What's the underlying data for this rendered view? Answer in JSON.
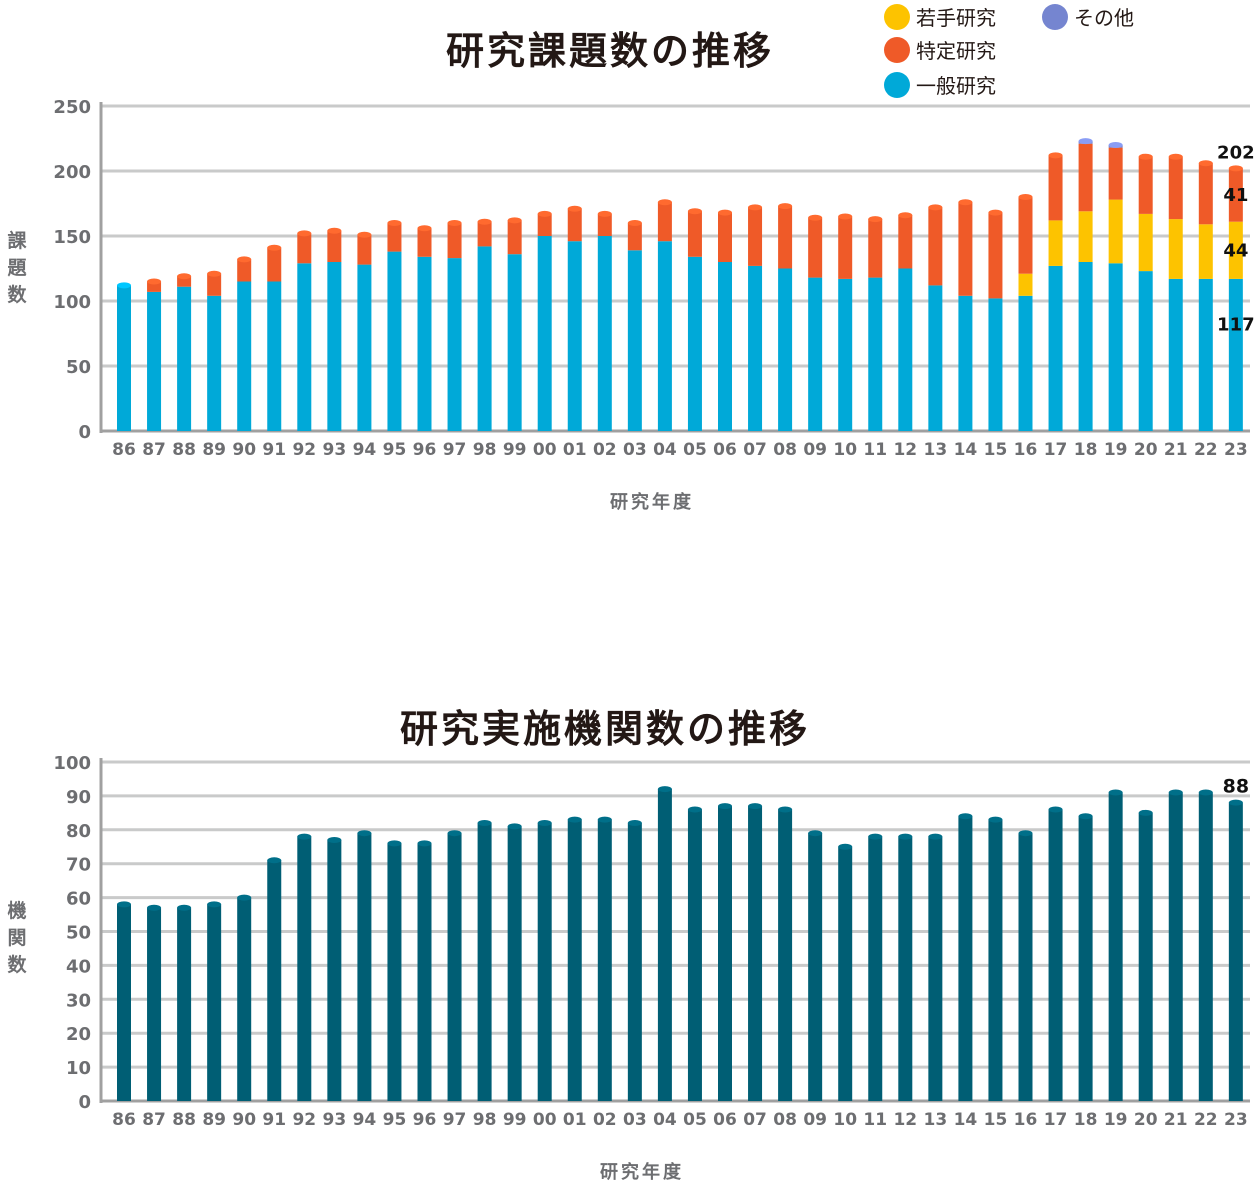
{
  "charts": {
    "projects": {
      "title": "研究課題数の推移",
      "ylabel": "課題数",
      "xlabel": "研究年度",
      "legend": [
        {
          "key": "young",
          "label": "若手研究",
          "color": "#fdc300"
        },
        {
          "key": "other",
          "label": "その他",
          "color": "#7585d0"
        },
        {
          "key": "specific",
          "label": "特定研究",
          "color": "#ef5a28"
        },
        {
          "key": "general",
          "label": "一般研究",
          "color": "#00a9d8"
        }
      ]
    },
    "institutions": {
      "title": "研究実施機関数の推移",
      "ylabel": "機関数",
      "xlabel": "研究年度"
    }
  },
  "chart_data": [
    {
      "type": "bar",
      "stacked": true,
      "title": "研究課題数の推移",
      "xlabel": "研究年度",
      "ylabel": "課題数",
      "ylim": [
        0,
        250
      ],
      "yticks": [
        0,
        50,
        100,
        150,
        200,
        250
      ],
      "grid": true,
      "legend_position": "top-right",
      "categories": [
        "86",
        "87",
        "88",
        "89",
        "90",
        "91",
        "92",
        "93",
        "94",
        "95",
        "96",
        "97",
        "98",
        "99",
        "00",
        "01",
        "02",
        "03",
        "04",
        "05",
        "06",
        "07",
        "08",
        "09",
        "10",
        "11",
        "12",
        "13",
        "14",
        "15",
        "16",
        "17",
        "18",
        "19",
        "20",
        "21",
        "22",
        "23"
      ],
      "series": [
        {
          "name": "一般研究",
          "color": "#00a9d8",
          "values": [
            112,
            107,
            111,
            104,
            115,
            115,
            129,
            130,
            128,
            138,
            134,
            133,
            142,
            136,
            150,
            146,
            150,
            139,
            146,
            134,
            130,
            127,
            125,
            118,
            117,
            118,
            125,
            112,
            104,
            102,
            104,
            127,
            130,
            129,
            123,
            117,
            117,
            117
          ]
        },
        {
          "name": "若手研究",
          "color": "#fdc300",
          "values": [
            0,
            0,
            0,
            0,
            0,
            0,
            0,
            0,
            0,
            0,
            0,
            0,
            0,
            0,
            0,
            0,
            0,
            0,
            0,
            0,
            0,
            0,
            0,
            0,
            0,
            0,
            0,
            0,
            0,
            0,
            17,
            35,
            39,
            49,
            44,
            46,
            42,
            44
          ]
        },
        {
          "name": "特定研究",
          "color": "#ef5a28",
          "values": [
            0,
            8,
            8,
            17,
            17,
            26,
            23,
            24,
            23,
            22,
            22,
            27,
            19,
            26,
            17,
            25,
            17,
            21,
            30,
            35,
            38,
            45,
            48,
            46,
            48,
            45,
            41,
            60,
            72,
            66,
            59,
            50,
            52,
            40,
            44,
            48,
            47,
            41
          ]
        },
        {
          "name": "その他",
          "color": "#7585d0",
          "values": [
            0,
            0,
            0,
            0,
            0,
            0,
            0,
            0,
            0,
            0,
            0,
            0,
            0,
            0,
            0,
            0,
            0,
            0,
            0,
            0,
            0,
            0,
            0,
            0,
            0,
            0,
            0,
            0,
            0,
            0,
            0,
            0,
            2,
            2,
            0,
            0,
            0,
            0
          ]
        }
      ],
      "data_labels": {
        "total": "202",
        "specific": "41",
        "young": "44",
        "general": "117"
      }
    },
    {
      "type": "bar",
      "title": "研究実施機関数の推移",
      "xlabel": "研究年度",
      "ylabel": "機関数",
      "ylim": [
        0,
        100
      ],
      "yticks": [
        0,
        10,
        20,
        30,
        40,
        50,
        60,
        70,
        80,
        90,
        100
      ],
      "grid": true,
      "color": "#005e74",
      "categories": [
        "86",
        "87",
        "88",
        "89",
        "90",
        "91",
        "92",
        "93",
        "94",
        "95",
        "96",
        "97",
        "98",
        "99",
        "00",
        "01",
        "02",
        "03",
        "04",
        "05",
        "06",
        "07",
        "08",
        "09",
        "10",
        "11",
        "12",
        "13",
        "14",
        "15",
        "16",
        "17",
        "18",
        "19",
        "20",
        "21",
        "22",
        "23"
      ],
      "values": [
        58,
        57,
        57,
        58,
        60,
        71,
        78,
        77,
        79,
        76,
        76,
        79,
        82,
        81,
        82,
        83,
        83,
        82,
        92,
        86,
        87,
        87,
        86,
        79,
        75,
        78,
        78,
        78,
        84,
        83,
        79,
        86,
        84,
        91,
        85,
        91,
        91,
        88
      ],
      "data_labels": {
        "last": "88"
      }
    }
  ]
}
